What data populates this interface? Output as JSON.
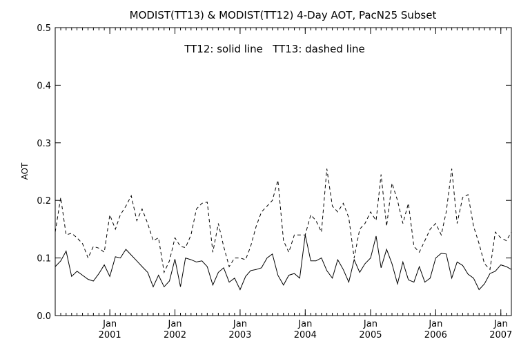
{
  "chart_data": {
    "type": "line",
    "title": "MODIST(TT13) & MODIST(TT12) 4-Day AOT, PacN25 Subset",
    "annotation": "TT12: solid line   TT13: dashed line",
    "ylabel": "AOT",
    "xlabel": "",
    "ylim": [
      0.0,
      0.5
    ],
    "yticks": [
      0.0,
      0.1,
      0.2,
      0.3,
      0.4,
      0.5
    ],
    "ytick_labels": [
      "0.0",
      "0.1",
      "0.2",
      "0.3",
      "0.4",
      "0.5"
    ],
    "xlim": [
      "2000-03-01",
      "2007-03-01"
    ],
    "xticks": [
      {
        "date": "2001-01-01",
        "month": "Jan",
        "year": "2001"
      },
      {
        "date": "2002-01-01",
        "month": "Jan",
        "year": "2002"
      },
      {
        "date": "2003-01-01",
        "month": "Jan",
        "year": "2003"
      },
      {
        "date": "2004-01-01",
        "month": "Jan",
        "year": "2004"
      },
      {
        "date": "2005-01-01",
        "month": "Jan",
        "year": "2005"
      },
      {
        "date": "2006-01-01",
        "month": "Jan",
        "year": "2006"
      },
      {
        "date": "2007-01-01",
        "month": "Jan",
        "year": "2007"
      }
    ],
    "series": [
      {
        "name": "TT12",
        "style": "solid",
        "x": [
          "2000-03-01",
          "2000-04-01",
          "2000-05-01",
          "2000-06-01",
          "2000-07-01",
          "2000-08-01",
          "2000-09-01",
          "2000-10-01",
          "2000-11-01",
          "2000-12-01",
          "2001-01-01",
          "2001-02-01",
          "2001-03-01",
          "2001-04-01",
          "2001-05-01",
          "2001-06-01",
          "2001-07-01",
          "2001-08-01",
          "2001-09-01",
          "2001-10-01",
          "2001-11-01",
          "2001-12-01",
          "2002-01-01",
          "2002-02-01",
          "2002-03-01",
          "2002-04-01",
          "2002-05-01",
          "2002-06-01",
          "2002-07-01",
          "2002-08-01",
          "2002-09-01",
          "2002-10-01",
          "2002-11-01",
          "2002-12-01",
          "2003-01-01",
          "2003-02-01",
          "2003-03-01",
          "2003-04-01",
          "2003-05-01",
          "2003-06-01",
          "2003-07-01",
          "2003-08-01",
          "2003-09-01",
          "2003-10-01",
          "2003-11-01",
          "2003-12-01",
          "2004-01-01",
          "2004-02-01",
          "2004-03-01",
          "2004-04-01",
          "2004-05-01",
          "2004-06-01",
          "2004-07-01",
          "2004-08-01",
          "2004-09-01",
          "2004-10-01",
          "2004-11-01",
          "2004-12-01",
          "2005-01-01",
          "2005-02-01",
          "2005-03-01",
          "2005-04-01",
          "2005-05-01",
          "2005-06-01",
          "2005-07-01",
          "2005-08-01",
          "2005-09-01",
          "2005-10-01",
          "2005-11-01",
          "2005-12-01",
          "2006-01-01",
          "2006-02-01",
          "2006-03-01",
          "2006-04-01",
          "2006-05-01",
          "2006-06-01",
          "2006-07-01",
          "2006-08-01",
          "2006-09-01",
          "2006-10-01",
          "2006-11-01",
          "2006-12-01",
          "2007-01-01",
          "2007-02-01",
          "2007-03-01"
        ],
        "y": [
          0.085,
          0.095,
          0.112,
          0.068,
          0.077,
          0.07,
          0.063,
          0.06,
          0.073,
          0.088,
          0.068,
          0.102,
          0.1,
          0.115,
          0.105,
          0.095,
          0.085,
          0.075,
          0.05,
          0.07,
          0.05,
          0.06,
          0.098,
          0.05,
          0.1,
          0.097,
          0.093,
          0.095,
          0.085,
          0.053,
          0.075,
          0.083,
          0.058,
          0.065,
          0.045,
          0.068,
          0.078,
          0.08,
          0.083,
          0.1,
          0.107,
          0.07,
          0.053,
          0.07,
          0.073,
          0.065,
          0.14,
          0.095,
          0.095,
          0.1,
          0.078,
          0.065,
          0.097,
          0.08,
          0.058,
          0.097,
          0.075,
          0.09,
          0.1,
          0.138,
          0.083,
          0.115,
          0.09,
          0.055,
          0.093,
          0.062,
          0.058,
          0.085,
          0.058,
          0.065,
          0.1,
          0.108,
          0.107,
          0.065,
          0.093,
          0.087,
          0.072,
          0.065,
          0.045,
          0.055,
          0.073,
          0.077,
          0.088,
          0.085,
          0.08
        ]
      },
      {
        "name": "TT13",
        "style": "dashed",
        "x": [
          "2000-03-01",
          "2000-04-01",
          "2000-05-01",
          "2000-06-01",
          "2000-07-01",
          "2000-08-01",
          "2000-09-01",
          "2000-10-01",
          "2000-11-01",
          "2000-12-01",
          "2001-01-01",
          "2001-02-01",
          "2001-03-01",
          "2001-04-01",
          "2001-05-01",
          "2001-06-01",
          "2001-07-01",
          "2001-08-01",
          "2001-09-01",
          "2001-10-01",
          "2001-11-01",
          "2001-12-01",
          "2002-01-01",
          "2002-02-01",
          "2002-03-01",
          "2002-04-01",
          "2002-05-01",
          "2002-06-01",
          "2002-07-01",
          "2002-08-01",
          "2002-09-01",
          "2002-10-01",
          "2002-11-01",
          "2002-12-01",
          "2003-01-01",
          "2003-02-01",
          "2003-03-01",
          "2003-04-01",
          "2003-05-01",
          "2003-06-01",
          "2003-07-01",
          "2003-08-01",
          "2003-09-01",
          "2003-10-01",
          "2003-11-01",
          "2003-12-01",
          "2004-01-01",
          "2004-02-01",
          "2004-03-01",
          "2004-04-01",
          "2004-05-01",
          "2004-06-01",
          "2004-07-01",
          "2004-08-01",
          "2004-09-01",
          "2004-10-01",
          "2004-11-01",
          "2004-12-01",
          "2005-01-01",
          "2005-02-01",
          "2005-03-01",
          "2005-04-01",
          "2005-05-01",
          "2005-06-01",
          "2005-07-01",
          "2005-08-01",
          "2005-09-01",
          "2005-10-01",
          "2005-11-01",
          "2005-12-01",
          "2006-01-01",
          "2006-02-01",
          "2006-03-01",
          "2006-04-01",
          "2006-05-01",
          "2006-06-01",
          "2006-07-01",
          "2006-08-01",
          "2006-09-01",
          "2006-10-01",
          "2006-11-01",
          "2006-12-01",
          "2007-01-01",
          "2007-02-01",
          "2007-03-01"
        ],
        "y": [
          0.145,
          0.205,
          0.14,
          0.143,
          0.135,
          0.125,
          0.1,
          0.12,
          0.117,
          0.11,
          0.175,
          0.15,
          0.175,
          0.19,
          0.208,
          0.165,
          0.185,
          0.16,
          0.13,
          0.135,
          0.075,
          0.095,
          0.135,
          0.12,
          0.118,
          0.14,
          0.185,
          0.195,
          0.197,
          0.11,
          0.16,
          0.12,
          0.085,
          0.1,
          0.1,
          0.097,
          0.12,
          0.155,
          0.18,
          0.19,
          0.2,
          0.235,
          0.13,
          0.11,
          0.14,
          0.14,
          0.14,
          0.175,
          0.165,
          0.145,
          0.255,
          0.19,
          0.18,
          0.195,
          0.17,
          0.1,
          0.15,
          0.16,
          0.18,
          0.165,
          0.245,
          0.155,
          0.23,
          0.2,
          0.16,
          0.195,
          0.12,
          0.11,
          0.13,
          0.15,
          0.16,
          0.14,
          0.18,
          0.255,
          0.16,
          0.205,
          0.21,
          0.155,
          0.125,
          0.09,
          0.08,
          0.145,
          0.135,
          0.13,
          0.145
        ]
      }
    ]
  }
}
